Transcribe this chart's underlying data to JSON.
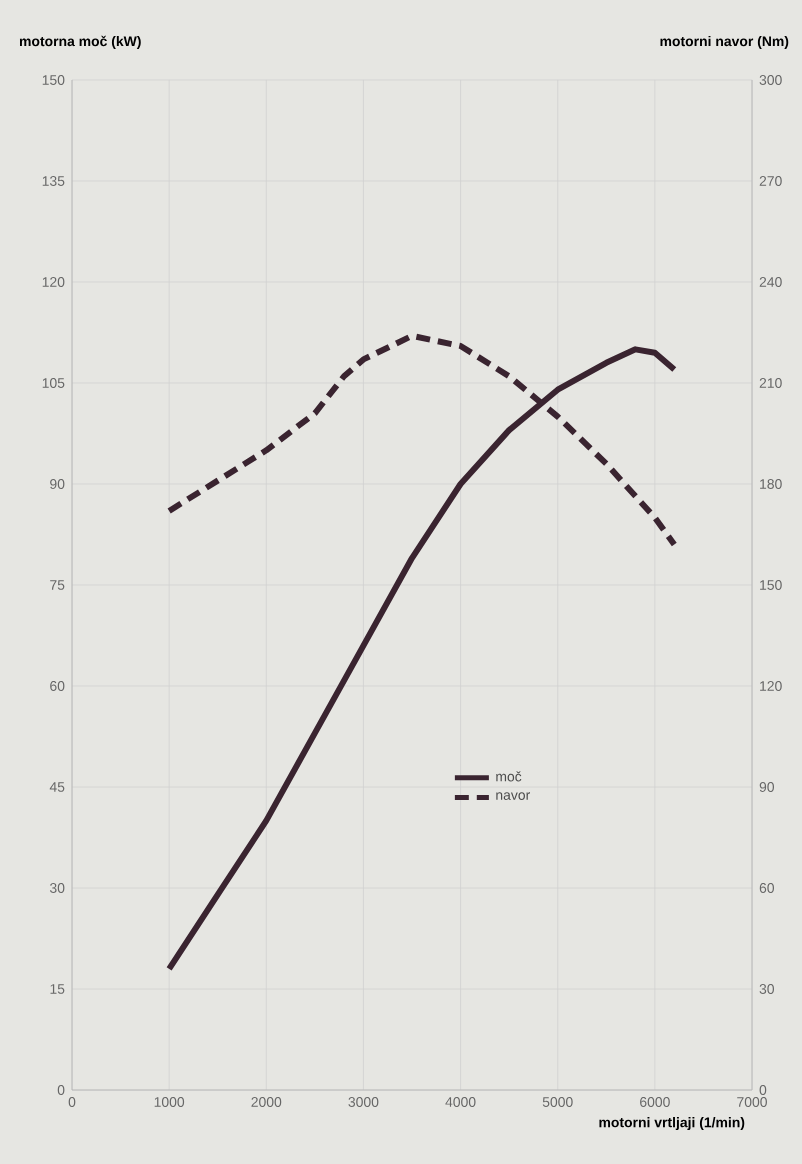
{
  "chart_data": {
    "type": "line",
    "xlabel": "motorni vrtljaji (1/min)",
    "ylabel": "motorna moč (kW)",
    "y2label": "motorni navor (Nm)",
    "xlim": [
      0,
      7000
    ],
    "xticks": [
      0,
      1000,
      2000,
      3000,
      4000,
      5000,
      6000,
      7000
    ],
    "ylim": [
      0,
      150
    ],
    "yticks": [
      0,
      15,
      30,
      45,
      60,
      75,
      90,
      105,
      120,
      135,
      150
    ],
    "y2lim": [
      0,
      300
    ],
    "y2ticks": [
      0,
      30,
      60,
      90,
      120,
      150,
      180,
      210,
      240,
      270,
      300
    ],
    "grid": true,
    "legend": "center",
    "marker": "none",
    "series": [
      {
        "name": "moč",
        "color": "#3a2430",
        "line_style": "solid",
        "x": [
          1000,
          1500,
          2000,
          2500,
          3000,
          3500,
          4000,
          4500,
          5000,
          5500,
          5800,
          6000,
          6200
        ],
        "values": [
          18,
          29,
          40,
          53,
          66,
          79,
          90,
          98,
          104,
          108,
          110,
          109.5,
          107
        ]
      },
      {
        "name": "navor",
        "color": "#3a2430",
        "line_style": "dashed",
        "axis": "y2",
        "x": [
          1000,
          1500,
          2000,
          2500,
          2800,
          3000,
          3500,
          4000,
          4500,
          5000,
          5500,
          6000,
          6200
        ],
        "values": [
          172,
          181,
          190,
          201,
          212,
          217,
          224,
          221,
          212,
          200,
          186,
          170,
          162
        ]
      }
    ]
  }
}
